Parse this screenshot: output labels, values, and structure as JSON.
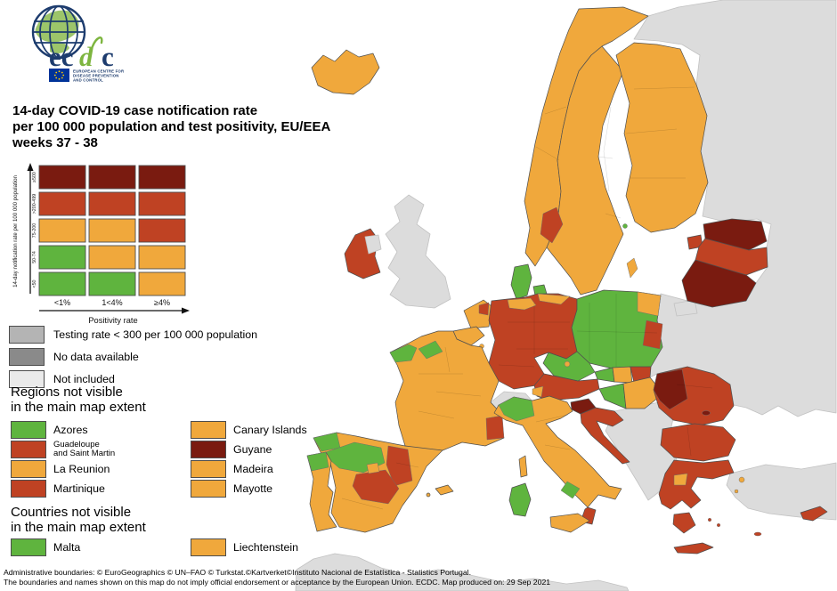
{
  "colors": {
    "green": "#5fb43e",
    "orange": "#f0a83c",
    "red": "#bf4223",
    "darkred": "#7a1b10",
    "land": "#dcdcdc",
    "sea": "#ffffff",
    "legend_testing": "#b4b4b4",
    "legend_nodata": "#8a8a8a",
    "legend_notincluded": "#eaeaea",
    "navy": "#1d3c6e",
    "logo_green": "#7db53f",
    "logo_land": "#9cc56a",
    "flag_blue": "#003399",
    "flag_yellow": "#ffcc00"
  },
  "logo": {
    "parts": {
      "ec": "ec",
      "d": "d",
      "c": "c"
    },
    "org_lines": [
      "EUROPEAN CENTRE FOR",
      "DISEASE PREVENTION",
      "AND CONTROL"
    ]
  },
  "title": {
    "lines": [
      "14-day COVID-19 case notification rate",
      "per 100 000 population and test positivity, EU/EEA",
      "weeks 37 - 38"
    ]
  },
  "legend_matrix": {
    "y_axis_label": "14-day notification rate per 100 000 population",
    "x_axis_label": "Positivity rate",
    "row_labels": [
      "≥500",
      ">200-499",
      "75-200",
      "50-74",
      "<50"
    ],
    "col_labels": [
      "<1%",
      "1<4%",
      "≥4%"
    ],
    "cells": [
      [
        "darkred",
        "darkred",
        "darkred"
      ],
      [
        "red",
        "red",
        "red"
      ],
      [
        "orange",
        "orange",
        "red"
      ],
      [
        "green",
        "orange",
        "orange"
      ],
      [
        "green",
        "green",
        "orange"
      ]
    ]
  },
  "legend_items": [
    {
      "label": "Testing rate < 300 per 100 000 population",
      "category": "legend_testing"
    },
    {
      "label": "No data available",
      "category": "legend_nodata"
    },
    {
      "label": "Not included",
      "category": "legend_notincluded"
    }
  ],
  "regions_section": {
    "heading_lines": [
      "Regions not visible",
      "in the main map extent"
    ],
    "items": [
      {
        "label": "Azores",
        "category": "green"
      },
      {
        "label": "Canary Islands",
        "category": "orange"
      },
      {
        "label": "Guadeloupe and Saint Martin",
        "category": "red",
        "lines": [
          "Guadeloupe",
          "and Saint Martin"
        ]
      },
      {
        "label": "Guyane",
        "category": "darkred"
      },
      {
        "label": "La Reunion",
        "category": "orange"
      },
      {
        "label": "Madeira",
        "category": "orange"
      },
      {
        "label": "Martinique",
        "category": "red"
      },
      {
        "label": "Mayotte",
        "category": "orange"
      }
    ]
  },
  "countries_section": {
    "heading_lines": [
      "Countries not visible",
      "in the main map extent"
    ],
    "items": [
      {
        "label": "Malta",
        "category": "green"
      },
      {
        "label": "Liechtenstein",
        "category": "orange"
      }
    ]
  },
  "footer": {
    "lines": [
      "Administrative boundaries: © EuroGeographics © UN–FAO © Turkstat.©Kartverket©Instituto Nacional de Estatística - Statistics Portugal.",
      "The boundaries and names shown on this map do not imply official endorsement or acceptance by the European Union. ECDC. Map produced on: 29 Sep 2021"
    ]
  },
  "map": {
    "regions": {
      "russia": "land",
      "turkey": "land",
      "africa": "land",
      "uk": "land",
      "northern-ireland": "land",
      "switzerland": "land",
      "balkans": "land",
      "kaliningrad": "land",
      "iceland": "orange",
      "norway": "orange",
      "oslo": "red",
      "sweden": "orange",
      "gotland": "orange",
      "finland": "orange",
      "aland": "green",
      "denmark": "green",
      "denmark-islands": "green",
      "estonia": "darkred",
      "saaremaa": "red",
      "latvia": "red",
      "lithuania": "darkred",
      "ireland": "red",
      "netherlands": "orange",
      "netherlands-patch": "red",
      "belgium": "orange",
      "luxembourg": "orange",
      "germany": "red",
      "schleswig": "orange",
      "mecklenburg": "orange",
      "poland": "green",
      "poland-ne": "orange",
      "poland-e": "red",
      "czechia": "green",
      "prague": "orange",
      "slovakia-w": "green",
      "slovakia-c": "orange",
      "slovakia-e": "red",
      "austria": "red",
      "vorarlberg": "orange",
      "hungary-w": "green",
      "hungary-e": "orange",
      "slovenia": "darkred",
      "croatia": "red",
      "romania": "red",
      "romania-w": "darkred",
      "bucharest": "darkred",
      "bulgaria": "red",
      "greece": "red",
      "thessaly": "orange",
      "peloponnese": "red",
      "crete": "red",
      "lesbos": "orange",
      "chios": "orange",
      "cyclades-1": "red",
      "cyclades-2": "red",
      "rhodes": "red",
      "cyprus": "red",
      "france": "orange",
      "brittany": "green",
      "normandy": "green",
      "provence": "red",
      "corsica": "orange",
      "spain": "orange",
      "galicia": "green",
      "castilla-leon": "green",
      "aragon": "red",
      "castilla-mancha": "red",
      "madrid": "orange",
      "balearics": "orange",
      "ibiza": "orange",
      "portugal": "orange",
      "portugal-n": "green",
      "italy": "orange",
      "italy-nw": "green",
      "campania": "green",
      "calabria": "red",
      "sicily": "orange",
      "sardinia": "green"
    }
  }
}
